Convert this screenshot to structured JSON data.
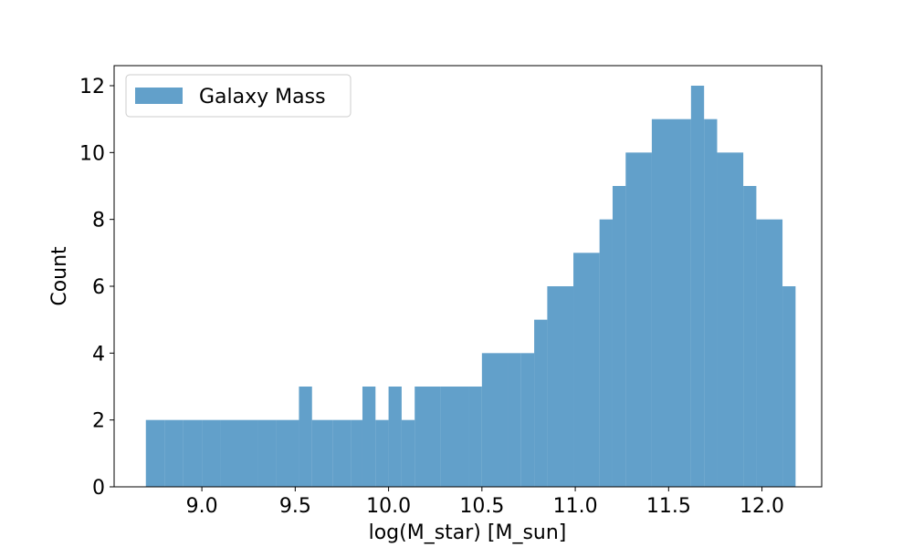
{
  "chart_data": {
    "type": "bar",
    "title": "",
    "xlabel": "log(M_star) [M_sun]",
    "ylabel": "Count",
    "xlim": [
      8.53,
      12.32
    ],
    "ylim": [
      0,
      12.6
    ],
    "xticks": [
      "9.0",
      "9.5",
      "10.0",
      "10.5",
      "11.0",
      "11.5",
      "12.0"
    ],
    "yticks": [
      "0",
      "2",
      "4",
      "6",
      "8",
      "10",
      "12"
    ],
    "grid": false,
    "legend_position": "top-left",
    "series": [
      {
        "name": "Galaxy Mass",
        "color": "#1f77b4",
        "opacity": 0.7,
        "bins": [
          [
            8.7,
            8.8,
            2
          ],
          [
            8.8,
            8.9,
            2
          ],
          [
            8.9,
            9.0,
            2
          ],
          [
            9.0,
            9.1,
            2
          ],
          [
            9.1,
            9.2,
            2
          ],
          [
            9.2,
            9.3,
            2
          ],
          [
            9.3,
            9.4,
            2
          ],
          [
            9.4,
            9.52,
            2
          ],
          [
            9.52,
            9.59,
            3
          ],
          [
            9.59,
            9.7,
            2
          ],
          [
            9.7,
            9.8,
            2
          ],
          [
            9.8,
            9.86,
            2
          ],
          [
            9.86,
            9.93,
            3
          ],
          [
            9.93,
            10.0,
            2
          ],
          [
            10.0,
            10.07,
            3
          ],
          [
            10.07,
            10.14,
            2
          ],
          [
            10.14,
            10.28,
            3
          ],
          [
            10.28,
            10.43,
            3
          ],
          [
            10.43,
            10.5,
            3
          ],
          [
            10.5,
            10.64,
            4
          ],
          [
            10.64,
            10.71,
            4
          ],
          [
            10.71,
            10.78,
            4
          ],
          [
            10.78,
            10.85,
            5
          ],
          [
            10.85,
            10.99,
            6
          ],
          [
            10.99,
            11.13,
            7
          ],
          [
            11.13,
            11.2,
            8
          ],
          [
            11.2,
            11.27,
            9
          ],
          [
            11.27,
            11.41,
            10
          ],
          [
            11.41,
            11.62,
            11
          ],
          [
            11.62,
            11.69,
            12
          ],
          [
            11.69,
            11.76,
            11
          ],
          [
            11.76,
            11.9,
            10
          ],
          [
            11.9,
            11.97,
            9
          ],
          [
            11.97,
            12.11,
            8
          ],
          [
            12.11,
            12.18,
            6
          ]
        ]
      }
    ]
  }
}
